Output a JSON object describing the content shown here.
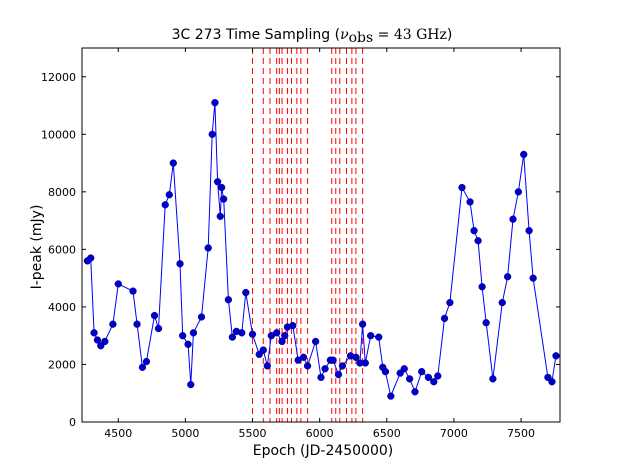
{
  "chart_data": {
    "type": "line",
    "title": {
      "prefix": "3C 273 Time Sampling (",
      "nu": "ν",
      "nu_sub": "obs",
      "equals": " =  43 GHz",
      "suffix": ")"
    },
    "xlabel": "Epoch (JD-2450000)",
    "ylabel": "I-peak (mJy)",
    "xlim": [
      4230,
      7790
    ],
    "ylim": [
      0,
      13000
    ],
    "xticks": [
      4500,
      5000,
      5500,
      6000,
      6500,
      7000,
      7500
    ],
    "yticks": [
      0,
      2000,
      4000,
      6000,
      8000,
      10000,
      12000
    ],
    "grid": false,
    "series": [
      {
        "name": "I-peak",
        "color": "#0000ff",
        "marker_color": "#0000cc",
        "x": [
          4270,
          4295,
          4320,
          4345,
          4370,
          4400,
          4460,
          4500,
          4610,
          4640,
          4680,
          4710,
          4770,
          4800,
          4850,
          4880,
          4910,
          4960,
          4980,
          5020,
          5040,
          5060,
          5120,
          5170,
          5200,
          5220,
          5240,
          5260,
          5270,
          5285,
          5320,
          5350,
          5380,
          5420,
          5450,
          5500,
          5550,
          5580,
          5610,
          5640,
          5680,
          5720,
          5740,
          5760,
          5800,
          5840,
          5880,
          5910,
          5970,
          6010,
          6040,
          6080,
          6100,
          6140,
          6170,
          6230,
          6270,
          6300,
          6320,
          6340,
          6380,
          6440,
          6470,
          6490,
          6530,
          6600,
          6630,
          6670,
          6710,
          6760,
          6810,
          6850,
          6880,
          6930,
          6970,
          7060,
          7120,
          7150,
          7180,
          7210,
          7240,
          7290,
          7360,
          7400,
          7440,
          7480,
          7520,
          7560,
          7590,
          7700,
          7730,
          7760
        ],
        "y": [
          5600,
          5700,
          3100,
          2850,
          2650,
          2800,
          3400,
          4800,
          4550,
          3400,
          1900,
          2100,
          3700,
          3250,
          7550,
          7900,
          9000,
          5500,
          3000,
          2700,
          1300,
          3100,
          3650,
          6050,
          10000,
          11100,
          8350,
          7150,
          8150,
          7750,
          4250,
          2950,
          3150,
          3100,
          4500,
          3050,
          2350,
          2500,
          1950,
          3000,
          3100,
          2800,
          3000,
          3300,
          3350,
          2150,
          2250,
          1950,
          2800,
          1550,
          1850,
          2150,
          2150,
          1650,
          1950,
          2300,
          2250,
          2050,
          3400,
          2050,
          3000,
          2950,
          1900,
          1750,
          900,
          1700,
          1850,
          1500,
          1050,
          1750,
          1550,
          1400,
          1600,
          3600,
          4150,
          8150,
          7650,
          6650,
          6300,
          4700,
          3450,
          1500,
          4150,
          5050,
          7050,
          8000,
          9300,
          6650,
          5000,
          1550,
          1400,
          2300
        ]
      }
    ],
    "vlines": {
      "color": "#ff0000",
      "style": "dashed",
      "x": [
        5500,
        5580,
        5630,
        5680,
        5700,
        5720,
        5760,
        5790,
        5830,
        5860,
        5910,
        6090,
        6120,
        6150,
        6200,
        6240,
        6270,
        6320
      ]
    }
  }
}
